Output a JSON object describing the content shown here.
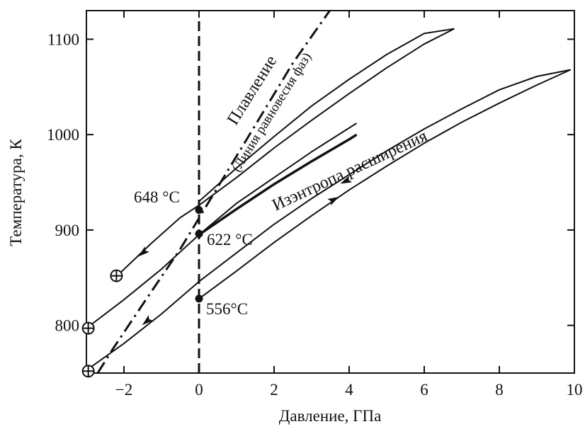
{
  "chart_data": {
    "type": "line",
    "xlabel": "Давление, ГПа",
    "ylabel": "Температура, К",
    "xlim": [
      -3,
      10
    ],
    "ylim": [
      750,
      1130
    ],
    "x_ticks": [
      -2,
      0,
      2,
      4,
      6,
      8,
      10
    ],
    "x_tick_labels": [
      "−2",
      "0",
      "2",
      "4",
      "6",
      "8",
      "10"
    ],
    "y_ticks": [
      800,
      900,
      1000,
      1100
    ],
    "y_tick_labels": [
      "800",
      "900",
      "1000",
      "1100"
    ],
    "grid": false,
    "colors": {
      "ink": "#111111",
      "background": "#ffffff"
    },
    "reference_lines": [
      {
        "orientation": "vertical",
        "x": 0,
        "style": "dashed"
      }
    ],
    "series": [
      {
        "style": "dash-dot",
        "points": [
          [
            -2.7,
            750
          ],
          [
            -2.3,
            775
          ],
          [
            -1.5,
            822
          ],
          [
            -0.5,
            880
          ],
          [
            0.5,
            945
          ],
          [
            1.5,
            1010
          ],
          [
            2.5,
            1075
          ],
          [
            3.5,
            1131
          ]
        ]
      },
      {
        "style": "solid",
        "points": [
          [
            -2.1,
            855
          ],
          [
            -1.3,
            885
          ],
          [
            -0.5,
            913
          ],
          [
            0,
            926
          ],
          [
            1,
            955
          ],
          [
            2,
            986
          ],
          [
            3,
            1015
          ],
          [
            4,
            1043
          ],
          [
            5,
            1070
          ],
          [
            6,
            1095
          ],
          [
            6.8,
            1111
          ]
        ]
      },
      {
        "style": "solid",
        "points": [
          [
            0,
            930
          ],
          [
            1,
            965
          ],
          [
            2,
            998
          ],
          [
            3,
            1030
          ],
          [
            4,
            1058
          ],
          [
            5,
            1084
          ],
          [
            6,
            1106
          ],
          [
            6.8,
            1111
          ]
        ]
      },
      {
        "style": "solid",
        "points": [
          [
            -2.9,
            800
          ],
          [
            -2,
            827
          ],
          [
            -1,
            859
          ],
          [
            0,
            895
          ],
          [
            1,
            928
          ],
          [
            2,
            955
          ],
          [
            3,
            982
          ],
          [
            4.2,
            1012
          ]
        ]
      },
      {
        "style": "solid",
        "points": [
          [
            0,
            895
          ],
          [
            1,
            922
          ],
          [
            2,
            948
          ],
          [
            3,
            972
          ],
          [
            4,
            995
          ],
          [
            4.2,
            1000
          ]
        ]
      },
      {
        "style": "solid",
        "points": [
          [
            -3,
            753
          ],
          [
            -2,
            781
          ],
          [
            -1,
            812
          ],
          [
            0,
            846
          ],
          [
            1,
            876
          ],
          [
            2,
            906
          ],
          [
            3,
            933
          ],
          [
            4,
            958
          ],
          [
            5,
            983
          ],
          [
            6,
            1006
          ],
          [
            7,
            1027
          ],
          [
            8,
            1047
          ],
          [
            9,
            1061
          ],
          [
            9.9,
            1068
          ]
        ]
      },
      {
        "style": "solid",
        "points": [
          [
            0,
            828
          ],
          [
            1,
            857
          ],
          [
            2,
            887
          ],
          [
            3,
            915
          ],
          [
            4,
            942
          ],
          [
            5,
            967
          ],
          [
            6,
            991
          ],
          [
            7,
            1013
          ],
          [
            8,
            1033
          ],
          [
            9,
            1052
          ],
          [
            9.9,
            1068
          ]
        ]
      }
    ],
    "arrows": [
      {
        "x": -1.5,
        "y": 876,
        "direction": "down-left"
      },
      {
        "x": 3.9,
        "y": 951,
        "direction": "down-left"
      },
      {
        "x": -1.4,
        "y": 804,
        "direction": "down-left"
      },
      {
        "x": 3.6,
        "y": 932,
        "direction": "up-right"
      }
    ],
    "markers": [
      {
        "x": 0,
        "y": 921,
        "shape": "dot"
      },
      {
        "x": 0,
        "y": 896,
        "shape": "dot"
      },
      {
        "x": 0,
        "y": 828,
        "shape": "dot"
      },
      {
        "x": -2.2,
        "y": 852,
        "shape": "circled-plus"
      },
      {
        "x": -2.95,
        "y": 797,
        "shape": "circled-plus"
      },
      {
        "x": -2.95,
        "y": 752,
        "shape": "circled-plus"
      }
    ],
    "point_labels": [
      "648 °C",
      "622 °C",
      "556°C"
    ],
    "annotations": {
      "melting": "Плавление",
      "phase_line": "(Линия равновесия фаз)",
      "isentrope": "Изэнтропа расширения"
    }
  }
}
